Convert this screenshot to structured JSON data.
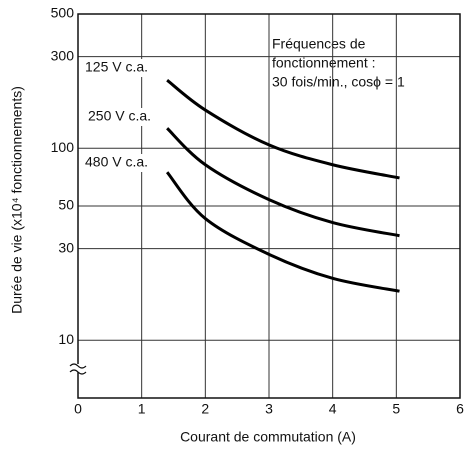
{
  "chart_data": {
    "type": "line",
    "x_label": "Courant de commutation (A)",
    "y_label": "Durée de vie (x10⁴ fonctionnements)",
    "annotation": [
      "Fréquences de",
      "fonctionnement :",
      "30 fois/min., cosϕ = 1"
    ],
    "x": [
      1.4,
      2,
      3,
      4,
      5.05
    ],
    "series": [
      {
        "name": "125 V c.a.",
        "color": "#000000",
        "values": [
          226,
          158,
          104,
          82,
          70
        ]
      },
      {
        "name": "250 V c.a.",
        "color": "#000000",
        "values": [
          127,
          82,
          54,
          41,
          35
        ]
      },
      {
        "name": "480 V c.a.",
        "color": "#000000",
        "values": [
          75,
          43,
          28,
          21,
          18
        ]
      }
    ],
    "xlim": [
      0,
      6
    ],
    "xticks": [
      0,
      1,
      2,
      3,
      4,
      5,
      6
    ],
    "ylim": [
      5,
      500
    ],
    "yticks": [
      10,
      30,
      50,
      100,
      300,
      500
    ],
    "ylog": true,
    "grid": true,
    "y_axis_break": true
  }
}
